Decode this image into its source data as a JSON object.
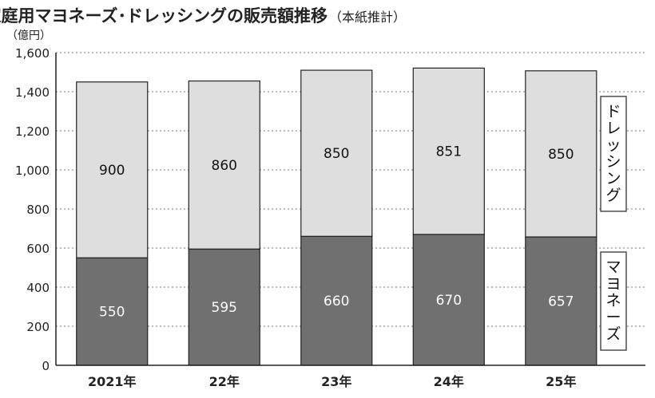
{
  "chart_data": {
    "type": "bar",
    "stacked": true,
    "title": "家庭用マヨネーズ･ドレッシングの販売額推移",
    "title_note": "（本紙推計）",
    "unit_label": "（億円）",
    "categories": [
      "2021年",
      "22年",
      "23年",
      "24年",
      "25年"
    ],
    "series": [
      {
        "name": "マヨネーズ",
        "values": [
          550,
          595,
          660,
          670,
          657
        ],
        "color": "#707070"
      },
      {
        "name": "ドレッシング",
        "values": [
          900,
          860,
          850,
          851,
          850
        ],
        "color": "#dedede"
      }
    ],
    "ylim": [
      0,
      1600
    ],
    "yticks": [
      "0",
      "200",
      "400",
      "600",
      "800",
      "1,000",
      "1,200",
      "1,400",
      "1,600"
    ],
    "grid": true,
    "grid_style": "dotted",
    "legend": "right, callout labels"
  }
}
